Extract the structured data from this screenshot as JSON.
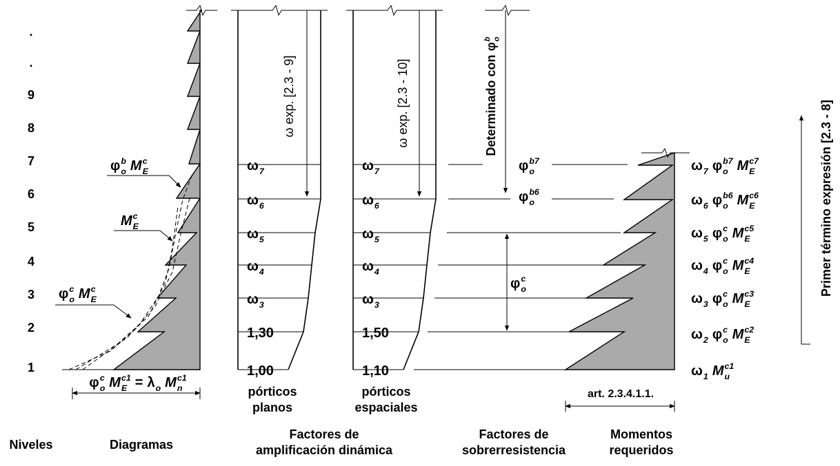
{
  "levels": [
    ".",
    ".",
    "9",
    "8",
    "7",
    "6",
    "5",
    "4",
    "3",
    "2",
    "1"
  ],
  "diagram": {
    "labels": [
      [
        {
          "t": "φ",
          "sub": "o",
          "sup": "b"
        },
        {
          "t": "M",
          "sub": "E",
          "sup": "c"
        }
      ],
      [
        {
          "t": "M",
          "sub": "E",
          "sup": "c"
        }
      ],
      [
        {
          "t": "φ",
          "sub": "o",
          "sup": "c"
        },
        {
          "t": "M",
          "sub": "E",
          "sup": "c"
        }
      ]
    ],
    "formula": [
      {
        "t": "φ",
        "sub": "o",
        "sup": "c"
      },
      {
        "t": "M",
        "sub": "E",
        "sup": "c1"
      },
      {
        "t": "="
      },
      {
        "t": "λ",
        "sub": "o"
      },
      {
        "t": "M",
        "sub": "n",
        "sup": "c1"
      }
    ]
  },
  "planos": {
    "factors": [
      [
        {
          "t": "ω",
          "sub": "7"
        }
      ],
      [
        {
          "t": "ω",
          "sub": "6"
        }
      ],
      [
        {
          "t": "ω",
          "sub": "5"
        }
      ],
      [
        {
          "t": "ω",
          "sub": "4"
        }
      ],
      [
        {
          "t": "ω",
          "sub": "3"
        }
      ],
      [
        {
          "t": "1,30"
        }
      ],
      [
        {
          "t": "1,00"
        }
      ]
    ],
    "arrow_label": "ω exp. [2.3 - 9]",
    "caption": [
      "pórticos",
      "planos"
    ]
  },
  "espaciales": {
    "factors": [
      [
        {
          "t": "ω",
          "sub": "7"
        }
      ],
      [
        {
          "t": "ω",
          "sub": "6"
        }
      ],
      [
        {
          "t": "ω",
          "sub": "5"
        }
      ],
      [
        {
          "t": "ω",
          "sub": "4"
        }
      ],
      [
        {
          "t": "ω",
          "sub": "3"
        }
      ],
      [
        {
          "t": "1,50"
        }
      ],
      [
        {
          "t": "1,10"
        }
      ]
    ],
    "arrow_label": "ω exp. [2.3 - 10]",
    "caption": [
      "pórticos",
      "espaciales"
    ]
  },
  "sobrerresistencia": {
    "arrow_label": [
      {
        "t": "Determinado con"
      },
      {
        "t": "φ",
        "sub": "o",
        "sup": "b"
      }
    ],
    "labels": [
      [
        {
          "t": "φ",
          "sub": "o",
          "sup": "b7"
        }
      ],
      [
        {
          "t": "φ",
          "sub": "o",
          "sup": "b6"
        }
      ],
      [
        {
          "t": "φ",
          "sub": "o",
          "sup": "c"
        }
      ]
    ]
  },
  "momentos": {
    "terms": [
      [
        {
          "t": "ω",
          "sub": "7"
        },
        {
          "t": "φ",
          "sub": "o",
          "sup": "b7"
        },
        {
          "t": "M",
          "sub": "E",
          "sup": "c7"
        }
      ],
      [
        {
          "t": "ω",
          "sub": "6"
        },
        {
          "t": "φ",
          "sub": "o",
          "sup": "b6"
        },
        {
          "t": "M",
          "sub": "E",
          "sup": "c6"
        }
      ],
      [
        {
          "t": "ω",
          "sub": "5"
        },
        {
          "t": "φ",
          "sub": "o",
          "sup": "c"
        },
        {
          "t": "M",
          "sub": "E",
          "sup": "c5"
        }
      ],
      [
        {
          "t": "ω",
          "sub": "4"
        },
        {
          "t": "φ",
          "sub": "o",
          "sup": "c"
        },
        {
          "t": "M",
          "sub": "E",
          "sup": "c4"
        }
      ],
      [
        {
          "t": "ω",
          "sub": "3"
        },
        {
          "t": "φ",
          "sub": "o",
          "sup": "c"
        },
        {
          "t": "M",
          "sub": "E",
          "sup": "c3"
        }
      ],
      [
        {
          "t": "ω",
          "sub": "2"
        },
        {
          "t": "φ",
          "sub": "o",
          "sup": "c"
        },
        {
          "t": "M",
          "sub": "E",
          "sup": "c2"
        }
      ],
      [
        {
          "t": "ω",
          "sub": "1"
        },
        {
          "t": "M",
          "sub": "u",
          "sup": "c1"
        }
      ]
    ],
    "article": "art. 2.3.4.1.1.",
    "side_label": "Primer término expresión [2.3 - 8]"
  },
  "headers": [
    [
      "Niveles"
    ],
    [
      "Diagramas"
    ],
    [
      "Factores de",
      "amplificación dinámica"
    ],
    [
      "Factores de",
      "sobrerresistencia"
    ],
    [
      "Momentos",
      "requeridos"
    ]
  ]
}
